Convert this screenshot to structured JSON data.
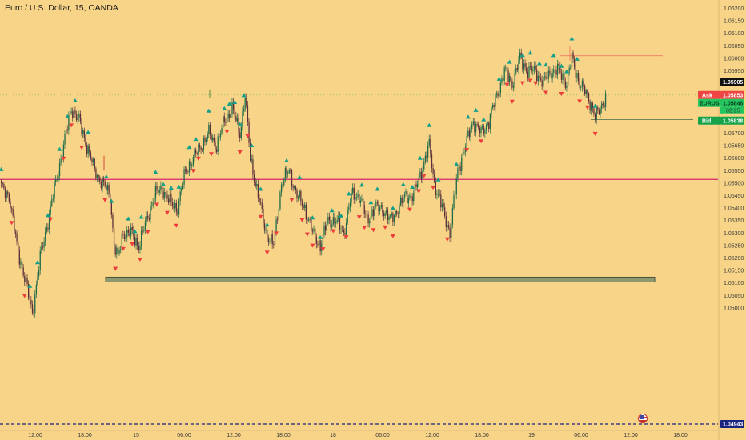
{
  "header": {
    "symbol_title": "Euro / U.S. Dollar, 15, OANDA"
  },
  "colors": {
    "background": "#f7d488",
    "up_candle": "#1e6b48",
    "down_candle": "#5a2f3a",
    "signal_up": "#129f8a",
    "signal_down": "#ef3b3b",
    "support_line": "#d6266e",
    "last_price_line": "#333333",
    "ask_tag": "#ef4444",
    "bid_tag": "#16a34a",
    "symbol_tag": "#22c55e",
    "bottom_line": "#1a237e",
    "zone_fill": "#8e9a6e",
    "zone_border": "#4a5438"
  },
  "price_axis": {
    "ticks": [
      "1.06200",
      "1.06150",
      "1.06100",
      "1.06050",
      "1.06000",
      "1.05950",
      "1.05900",
      "1.05850",
      "1.05800",
      "1.05750",
      "1.05700",
      "1.05650",
      "1.05600",
      "1.05550",
      "1.05500",
      "1.05450",
      "1.05400",
      "1.05350",
      "1.05300",
      "1.05250",
      "1.05200",
      "1.05150",
      "1.05100",
      "1.05050",
      "1.05000"
    ],
    "current_price_label": "1.05905",
    "ask_label": "Ask",
    "ask_value": "1.05853",
    "symbol_label": "EURUSD",
    "symbol_value": "1.05846",
    "countdown": "02:25",
    "bid_label": "Bid",
    "bid_value": "1.05838",
    "low_label": "1.04943"
  },
  "time_axis": {
    "labels": [
      "12:00",
      "18:00",
      "15",
      "06:00",
      "12:00",
      "18:00",
      "18",
      "06:00",
      "12:00",
      "18:00",
      "19",
      "06:00",
      "12:00",
      "18:00"
    ]
  },
  "levels": {
    "support": 1.05515,
    "last_price": 1.05905,
    "zone_top": 1.0512,
    "zone_bottom": 1.05108,
    "ask": 1.05853,
    "bid_extension": 1.05755,
    "high_marker": 1.0601,
    "bottom_low": 1.04943
  },
  "chart_data": {
    "type": "candlestick",
    "title": "Euro / U.S. Dollar, 15, OANDA",
    "price_ticks": [
      1.062,
      1.0615,
      1.061,
      1.0605,
      1.06,
      1.0595,
      1.059,
      1.0585,
      1.058,
      1.0575,
      1.057,
      1.0565,
      1.056,
      1.0555,
      1.055,
      1.0545,
      1.054,
      1.0535,
      1.053,
      1.0525,
      1.052,
      1.0515,
      1.051,
      1.0505,
      1.05
    ],
    "ylim": [
      1.0493,
      1.0623
    ],
    "time_ticks": [
      "12:00",
      "18:00",
      "15",
      "06:00",
      "12:00",
      "18:00",
      "18",
      "06:00",
      "12:00",
      "18:00",
      "19",
      "06:00",
      "12:00",
      "18:00"
    ],
    "close_keypoints": [
      [
        0,
        1.0548
      ],
      [
        6,
        1.0545
      ],
      [
        12,
        1.0525
      ],
      [
        18,
        1.0512
      ],
      [
        24,
        1.0498
      ],
      [
        30,
        1.052
      ],
      [
        36,
        1.0535
      ],
      [
        42,
        1.055
      ],
      [
        48,
        1.0565
      ],
      [
        54,
        1.058
      ],
      [
        60,
        1.0575
      ],
      [
        66,
        1.0565
      ],
      [
        72,
        1.0555
      ],
      [
        78,
        1.055
      ],
      [
        84,
        1.0545
      ],
      [
        87,
        1.0525
      ],
      [
        90,
        1.052
      ],
      [
        94,
        1.053
      ],
      [
        100,
        1.053
      ],
      [
        106,
        1.0525
      ],
      [
        112,
        1.0535
      ],
      [
        118,
        1.0545
      ],
      [
        124,
        1.0548
      ],
      [
        130,
        1.0542
      ],
      [
        136,
        1.054
      ],
      [
        142,
        1.0555
      ],
      [
        148,
        1.056
      ],
      [
        154,
        1.0565
      ],
      [
        160,
        1.057
      ],
      [
        166,
        1.0565
      ],
      [
        172,
        1.0575
      ],
      [
        178,
        1.058
      ],
      [
        184,
        1.057
      ],
      [
        188,
        1.0585
      ],
      [
        192,
        1.056
      ],
      [
        198,
        1.0545
      ],
      [
        204,
        1.053
      ],
      [
        210,
        1.0525
      ],
      [
        216,
        1.055
      ],
      [
        222,
        1.0555
      ],
      [
        228,
        1.0545
      ],
      [
        234,
        1.054
      ],
      [
        240,
        1.053
      ],
      [
        246,
        1.0525
      ],
      [
        252,
        1.0535
      ],
      [
        258,
        1.0535
      ],
      [
        264,
        1.053
      ],
      [
        270,
        1.0545
      ],
      [
        276,
        1.0545
      ],
      [
        282,
        1.0535
      ],
      [
        288,
        1.054
      ],
      [
        294,
        1.054
      ],
      [
        300,
        1.0535
      ],
      [
        306,
        1.054
      ],
      [
        312,
        1.0545
      ],
      [
        318,
        1.0545
      ],
      [
        324,
        1.0555
      ],
      [
        330,
        1.0565
      ],
      [
        334,
        1.055
      ],
      [
        340,
        1.054
      ],
      [
        346,
        1.053
      ],
      [
        352,
        1.0555
      ],
      [
        358,
        1.0565
      ],
      [
        364,
        1.0575
      ],
      [
        370,
        1.057
      ],
      [
        376,
        1.0575
      ],
      [
        382,
        1.0585
      ],
      [
        388,
        1.0595
      ],
      [
        394,
        1.059
      ],
      [
        400,
        1.06
      ],
      [
        406,
        1.0595
      ],
      [
        412,
        1.0595
      ],
      [
        418,
        1.059
      ],
      [
        424,
        1.0595
      ],
      [
        430,
        1.0595
      ],
      [
        436,
        1.059
      ],
      [
        440,
        1.06
      ],
      [
        446,
        1.059
      ],
      [
        452,
        1.0585
      ],
      [
        456,
        1.058
      ],
      [
        458,
        1.0576
      ],
      [
        462,
        1.058
      ],
      [
        466,
        1.0585
      ]
    ],
    "signals": {
      "up_bar_indexes": [
        0,
        22,
        28,
        36,
        45,
        51,
        57,
        67,
        81,
        85,
        98,
        103,
        108,
        119,
        125,
        131,
        137,
        145,
        150,
        160,
        172,
        176,
        180,
        184,
        187,
        193,
        200,
        205,
        220,
        230,
        240,
        246,
        255,
        262,
        268,
        278,
        285,
        290,
        302,
        310,
        317,
        323,
        330,
        337,
        351,
        360,
        366,
        372,
        384,
        392,
        402,
        408,
        415,
        420,
        426,
        432,
        436,
        440,
        444,
        458
      ],
      "down_bar_indexes": [
        8,
        18,
        38,
        48,
        54,
        62,
        80,
        88,
        94,
        101,
        107,
        113,
        120,
        128,
        135,
        148,
        152,
        162,
        174,
        184,
        190,
        200,
        205,
        212,
        224,
        232,
        236,
        240,
        248,
        256,
        266,
        276,
        280,
        287,
        296,
        302,
        315,
        322,
        326,
        333,
        344,
        359,
        370,
        390,
        394,
        402,
        408,
        412,
        420,
        432,
        446,
        452,
        458
      ]
    }
  }
}
